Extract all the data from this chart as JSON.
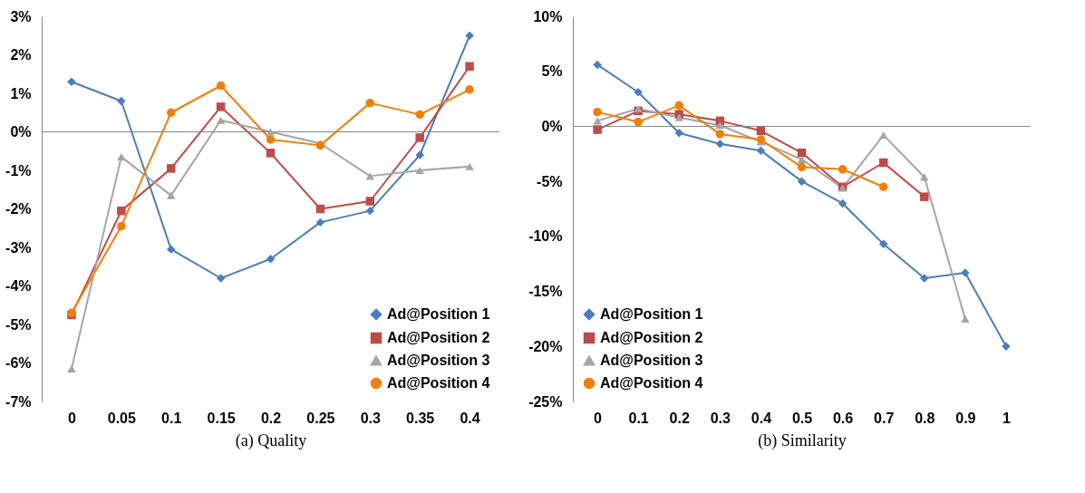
{
  "chart_data": [
    {
      "type": "line",
      "xlabel": "(a) Quality",
      "categories": [
        "0",
        "0.05",
        "0.1",
        "0.15",
        "0.2",
        "0.25",
        "0.3",
        "0.35",
        "0.4"
      ],
      "series": [
        {
          "name": "Ad@Position 1",
          "color": "#4a7ebb",
          "marker": "diamond",
          "values": [
            1.3,
            0.8,
            -3.05,
            -3.8,
            -3.3,
            -2.35,
            -2.05,
            -0.6,
            2.5
          ]
        },
        {
          "name": "Ad@Position 2",
          "color": "#be4b48",
          "marker": "square",
          "values": [
            -4.75,
            -2.05,
            -0.95,
            0.65,
            -0.55,
            -2.0,
            -1.8,
            -0.15,
            1.7
          ]
        },
        {
          "name": "Ad@Position 3",
          "color": "#a5a5a5",
          "marker": "triangle",
          "values": [
            -6.15,
            -0.65,
            -1.65,
            0.3,
            0.0,
            -0.3,
            -1.15,
            -1.0,
            -0.9
          ]
        },
        {
          "name": "Ad@Position 4",
          "color": "#f07f09",
          "marker": "circle",
          "values": [
            -4.7,
            -2.45,
            0.5,
            1.2,
            -0.2,
            -0.35,
            0.75,
            0.45,
            1.1
          ]
        }
      ],
      "ylim": [
        -7,
        3
      ],
      "yticks": [
        {
          "value": -7,
          "label": "-7%"
        },
        {
          "value": -6,
          "label": "-6%"
        },
        {
          "value": -5,
          "label": "-5%"
        },
        {
          "value": -4,
          "label": "-4%"
        },
        {
          "value": -3,
          "label": "-3%"
        },
        {
          "value": -2,
          "label": "-2%"
        },
        {
          "value": -1,
          "label": "-1%"
        },
        {
          "value": 0,
          "label": "0%"
        },
        {
          "value": 1,
          "label": "1%"
        },
        {
          "value": 2,
          "label": "2%"
        },
        {
          "value": 3,
          "label": "3%"
        }
      ],
      "ref_lines": [
        {
          "axis": "y",
          "value": 0,
          "color": "#868686"
        }
      ],
      "grid": false,
      "legend": "bottom right"
    },
    {
      "type": "line",
      "xlabel": "(b) Similarity",
      "categories": [
        "0",
        "0.1",
        "0.2",
        "0.3",
        "0.4",
        "0.5",
        "0.6",
        "0.7",
        "0.8",
        "0.9",
        "1"
      ],
      "series": [
        {
          "name": "Ad@Position 1",
          "color": "#4a7ebb",
          "marker": "diamond",
          "values": [
            5.6,
            3.1,
            -0.6,
            -1.6,
            -2.2,
            -5.0,
            -7.0,
            -10.7,
            -13.8,
            -13.3,
            -20.0
          ]
        },
        {
          "name": "Ad@Position 2",
          "color": "#be4b48",
          "marker": "square",
          "values": [
            -0.3,
            1.4,
            1.1,
            0.5,
            -0.4,
            -2.4,
            -5.5,
            -3.3,
            -6.4,
            null,
            null
          ]
        },
        {
          "name": "Ad@Position 3",
          "color": "#a5a5a5",
          "marker": "triangle",
          "values": [
            0.5,
            1.6,
            0.8,
            0.1,
            -1.4,
            -3.0,
            -5.6,
            -0.8,
            -4.6,
            -17.5,
            null
          ]
        },
        {
          "name": "Ad@Position 4",
          "color": "#f07f09",
          "marker": "circle",
          "values": [
            1.3,
            0.4,
            1.9,
            -0.7,
            -1.2,
            -3.7,
            -3.9,
            -5.5,
            null,
            null,
            null
          ]
        }
      ],
      "ylim": [
        -25,
        10
      ],
      "yticks": [
        {
          "value": -25,
          "label": "-25%"
        },
        {
          "value": -20,
          "label": "-20%"
        },
        {
          "value": -15,
          "label": "-15%"
        },
        {
          "value": -10,
          "label": "-10%"
        },
        {
          "value": -5,
          "label": "-5%"
        },
        {
          "value": 0,
          "label": "0%"
        },
        {
          "value": 5,
          "label": "5%"
        },
        {
          "value": 10,
          "label": "10%"
        }
      ],
      "ref_lines": [
        {
          "axis": "y",
          "value": 0,
          "color": "#868686"
        }
      ],
      "grid": false,
      "legend": "bottom left"
    }
  ]
}
